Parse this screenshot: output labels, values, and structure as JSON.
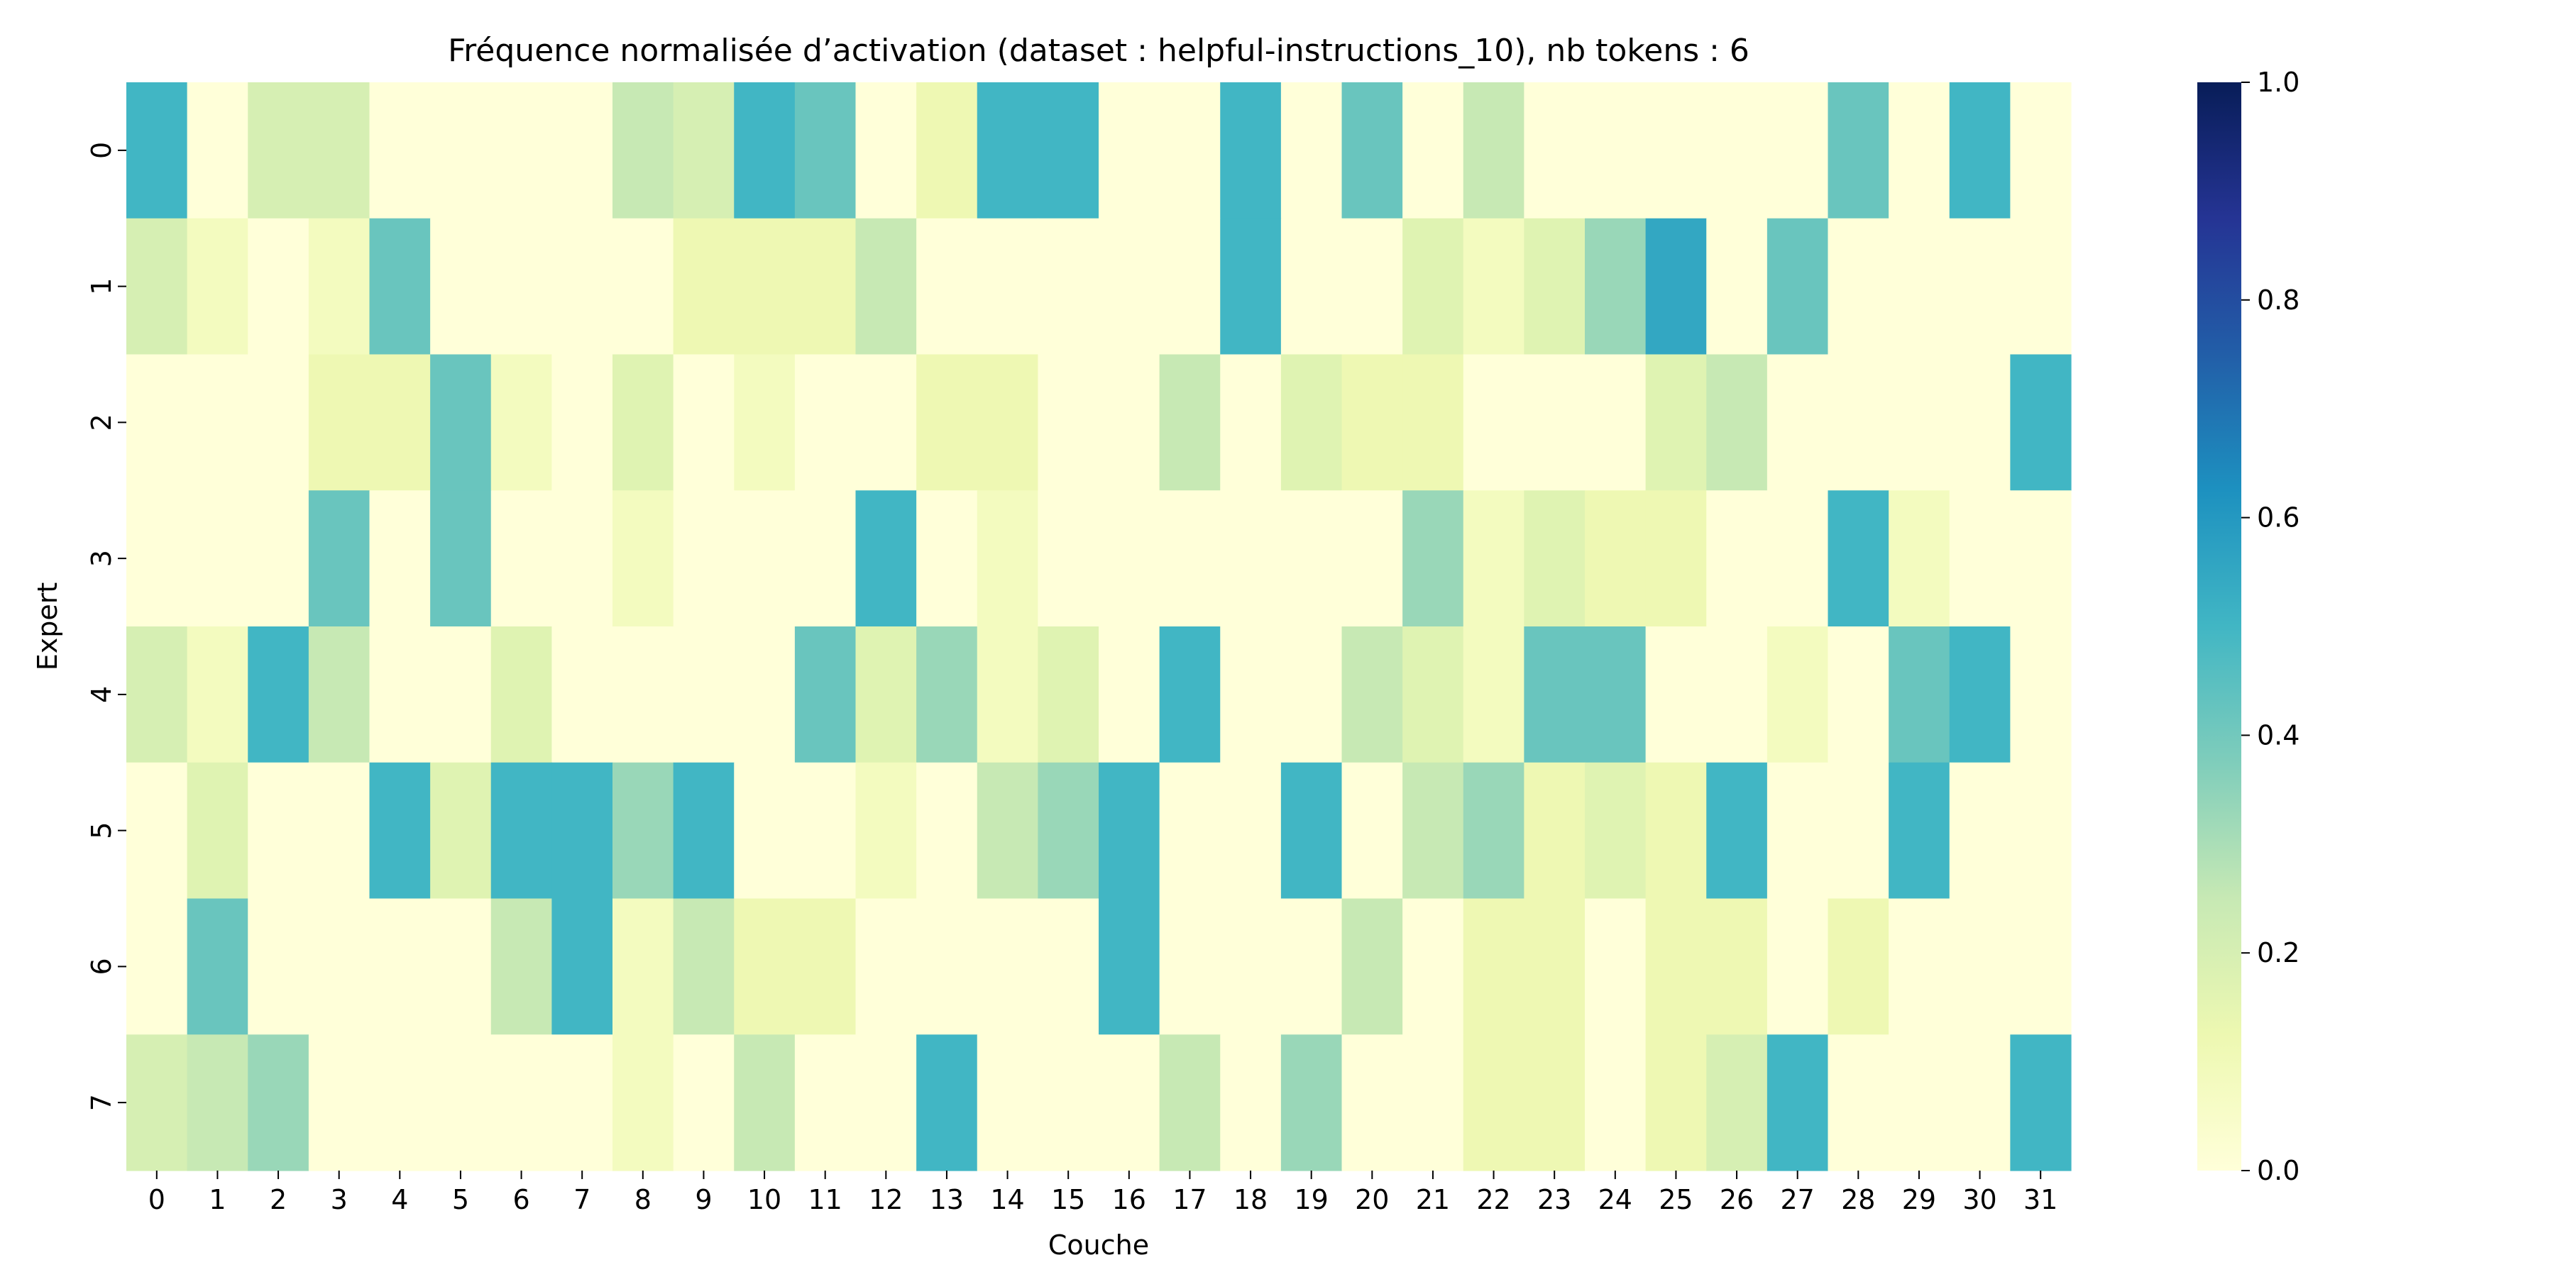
{
  "chart_data": {
    "type": "heatmap",
    "title": "Fréquence normalisée d’activation (dataset : helpful-instructions_10), nb tokens : 6",
    "xlabel": "Couche",
    "ylabel": "Expert",
    "x_categories": [
      "0",
      "1",
      "2",
      "3",
      "4",
      "5",
      "6",
      "7",
      "8",
      "9",
      "10",
      "11",
      "12",
      "13",
      "14",
      "15",
      "16",
      "17",
      "18",
      "19",
      "20",
      "21",
      "22",
      "23",
      "24",
      "25",
      "26",
      "27",
      "28",
      "29",
      "30",
      "31"
    ],
    "y_categories": [
      "0",
      "1",
      "2",
      "3",
      "4",
      "5",
      "6",
      "7"
    ],
    "colorscale": "YlGnBu",
    "value_range": [
      0,
      1
    ],
    "colorbar_ticks": [
      "0.0",
      "0.2",
      "0.4",
      "0.6",
      "0.8",
      "1.0"
    ],
    "values": [
      [
        0.5,
        0.0,
        0.2,
        0.2,
        0.0,
        0.0,
        0.0,
        0.0,
        0.25,
        0.2,
        0.5,
        0.42,
        0.0,
        0.12,
        0.5,
        0.5,
        0.0,
        0.0,
        0.5,
        0.0,
        0.42,
        0.0,
        0.25,
        0.0,
        0.0,
        0.0,
        0.0,
        0.0,
        0.42,
        0.0,
        0.5,
        0.0
      ],
      [
        0.2,
        0.08,
        0.0,
        0.08,
        0.42,
        0.0,
        0.0,
        0.0,
        0.0,
        0.12,
        0.12,
        0.12,
        0.25,
        0.0,
        0.0,
        0.0,
        0.0,
        0.0,
        0.5,
        0.0,
        0.0,
        0.17,
        0.08,
        0.17,
        0.33,
        0.55,
        0.0,
        0.42,
        0.0,
        0.0,
        0.0,
        0.0
      ],
      [
        0.0,
        0.0,
        0.0,
        0.12,
        0.12,
        0.42,
        0.08,
        0.0,
        0.17,
        0.0,
        0.08,
        0.0,
        0.0,
        0.12,
        0.12,
        0.0,
        0.0,
        0.25,
        0.0,
        0.17,
        0.12,
        0.12,
        0.0,
        0.0,
        0.0,
        0.17,
        0.25,
        0.0,
        0.0,
        0.0,
        0.0,
        0.5
      ],
      [
        0.0,
        0.0,
        0.0,
        0.42,
        0.0,
        0.42,
        0.0,
        0.0,
        0.08,
        0.0,
        0.0,
        0.0,
        0.5,
        0.0,
        0.08,
        0.0,
        0.0,
        0.0,
        0.0,
        0.0,
        0.0,
        0.33,
        0.08,
        0.17,
        0.12,
        0.12,
        0.0,
        0.0,
        0.5,
        0.08,
        0.0,
        0.0
      ],
      [
        0.2,
        0.08,
        0.5,
        0.25,
        0.0,
        0.0,
        0.17,
        0.0,
        0.0,
        0.0,
        0.0,
        0.42,
        0.17,
        0.33,
        0.08,
        0.17,
        0.0,
        0.5,
        0.0,
        0.0,
        0.25,
        0.17,
        0.08,
        0.42,
        0.42,
        0.0,
        0.0,
        0.08,
        0.0,
        0.42,
        0.5,
        0.0
      ],
      [
        0.0,
        0.17,
        0.0,
        0.0,
        0.5,
        0.17,
        0.5,
        0.5,
        0.33,
        0.5,
        0.0,
        0.0,
        0.08,
        0.0,
        0.25,
        0.33,
        0.5,
        0.0,
        0.0,
        0.5,
        0.0,
        0.25,
        0.33,
        0.12,
        0.17,
        0.12,
        0.5,
        0.0,
        0.0,
        0.5,
        0.0,
        0.0
      ],
      [
        0.0,
        0.42,
        0.0,
        0.0,
        0.0,
        0.0,
        0.25,
        0.5,
        0.08,
        0.25,
        0.12,
        0.12,
        0.0,
        0.0,
        0.0,
        0.0,
        0.5,
        0.0,
        0.0,
        0.0,
        0.25,
        0.0,
        0.12,
        0.12,
        0.0,
        0.12,
        0.12,
        0.0,
        0.12,
        0.0,
        0.0,
        0.0
      ],
      [
        0.2,
        0.25,
        0.33,
        0.0,
        0.0,
        0.0,
        0.0,
        0.0,
        0.08,
        0.0,
        0.25,
        0.0,
        0.0,
        0.5,
        0.0,
        0.0,
        0.0,
        0.25,
        0.0,
        0.33,
        0.0,
        0.0,
        0.12,
        0.12,
        0.0,
        0.12,
        0.2,
        0.5,
        0.0,
        0.0,
        0.0,
        0.5
      ]
    ]
  }
}
